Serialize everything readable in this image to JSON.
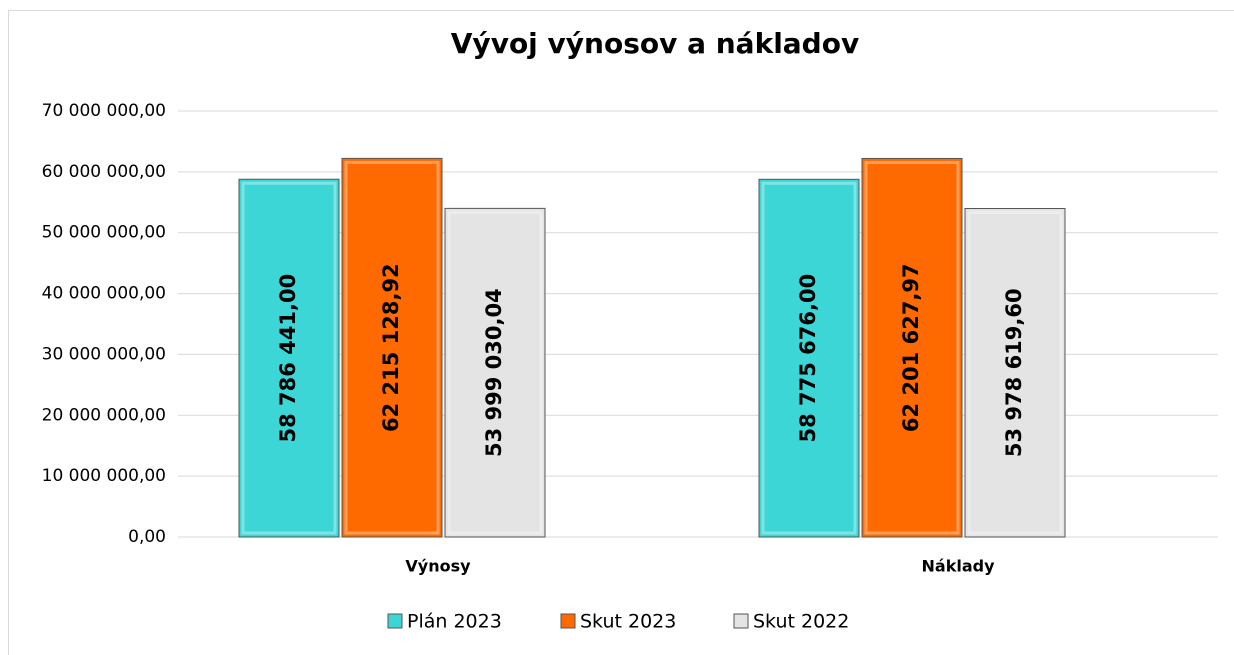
{
  "chart_data": {
    "type": "bar",
    "title": "Vývoj výnosov a nákladov",
    "categories": [
      "Výnosy",
      "Náklady"
    ],
    "series": [
      {
        "name": "Plán 2023",
        "color": "#3cd6d6",
        "values": [
          58786441.0,
          58775676.0
        ],
        "value_labels": [
          "58 786 441,00",
          "58 775 676,00"
        ]
      },
      {
        "name": "Skut 2023",
        "color": "#ff6a00",
        "values": [
          62215128.92,
          62201627.97
        ],
        "value_labels": [
          "62 215 128,92",
          "62 201 627,97"
        ]
      },
      {
        "name": "Skut 2022",
        "color": "#e4e4e4",
        "values": [
          53999030.04,
          53978619.6
        ],
        "value_labels": [
          "53 999 030,04",
          "53 978 619,60"
        ]
      }
    ],
    "ylim": [
      0,
      70000000
    ],
    "yticks": [
      {
        "value": 0,
        "label": "0,00"
      },
      {
        "value": 10000000,
        "label": "10 000 000,00"
      },
      {
        "value": 20000000,
        "label": "20 000 000,00"
      },
      {
        "value": 30000000,
        "label": "30 000 000,00"
      },
      {
        "value": 40000000,
        "label": "40 000 000,00"
      },
      {
        "value": 50000000,
        "label": "50 000 000,00"
      },
      {
        "value": 60000000,
        "label": "60 000 000,00"
      },
      {
        "value": 70000000,
        "label": "70 000 000,00"
      }
    ],
    "grid": true,
    "legend": "bottom"
  }
}
